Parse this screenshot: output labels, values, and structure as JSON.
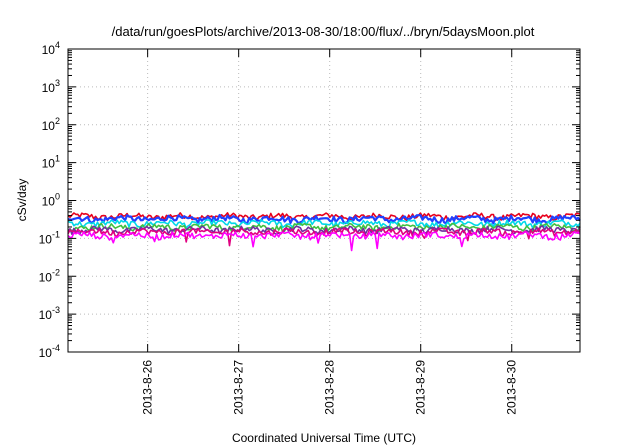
{
  "chart_data": {
    "type": "line",
    "title": "/data/run/goesPlots/archive/2013-08-30/18:00/flux/../bryn/5daysMoon.plot",
    "xlabel": "Coordinated Universal Time (UTC)",
    "ylabel": "cSv/day",
    "yscale": "log",
    "ylim": [
      0.0001,
      10000
    ],
    "xlim": [
      "2013-08-25T03:00",
      "2013-08-30T18:00"
    ],
    "grid": true,
    "y_ticks": [
      {
        "value": 0.0001,
        "mantissa": "10",
        "exp": "-4"
      },
      {
        "value": 0.001,
        "mantissa": "10",
        "exp": "-3"
      },
      {
        "value": 0.01,
        "mantissa": "10",
        "exp": "-2"
      },
      {
        "value": 0.1,
        "mantissa": "10",
        "exp": "-1"
      },
      {
        "value": 1,
        "mantissa": "10",
        "exp": "0"
      },
      {
        "value": 10,
        "mantissa": "10",
        "exp": "1"
      },
      {
        "value": 100,
        "mantissa": "10",
        "exp": "2"
      },
      {
        "value": 1000,
        "mantissa": "10",
        "exp": "3"
      },
      {
        "value": 10000,
        "mantissa": "10",
        "exp": "4"
      }
    ],
    "x_ticks": [
      {
        "value": "2013-08-26T00:00",
        "label": "2013-8-26"
      },
      {
        "value": "2013-08-27T00:00",
        "label": "2013-8-27"
      },
      {
        "value": "2013-08-28T00:00",
        "label": "2013-8-28"
      },
      {
        "value": "2013-08-29T00:00",
        "label": "2013-8-29"
      },
      {
        "value": "2013-08-30T00:00",
        "label": "2013-8-30"
      }
    ],
    "series": [
      {
        "color": "#e8001c",
        "values_approx": 0.38
      },
      {
        "color": "#2040ff",
        "values_approx": 0.33
      },
      {
        "color": "#00d8e8",
        "values_approx": 0.25
      },
      {
        "color": "#40c040",
        "values_approx": 0.2
      },
      {
        "color": "#7030a0",
        "values_approx": 0.17
      },
      {
        "color": "#e00080",
        "values_approx": 0.15
      },
      {
        "color": "#ff00ff",
        "values_approx": 0.12
      }
    ]
  }
}
